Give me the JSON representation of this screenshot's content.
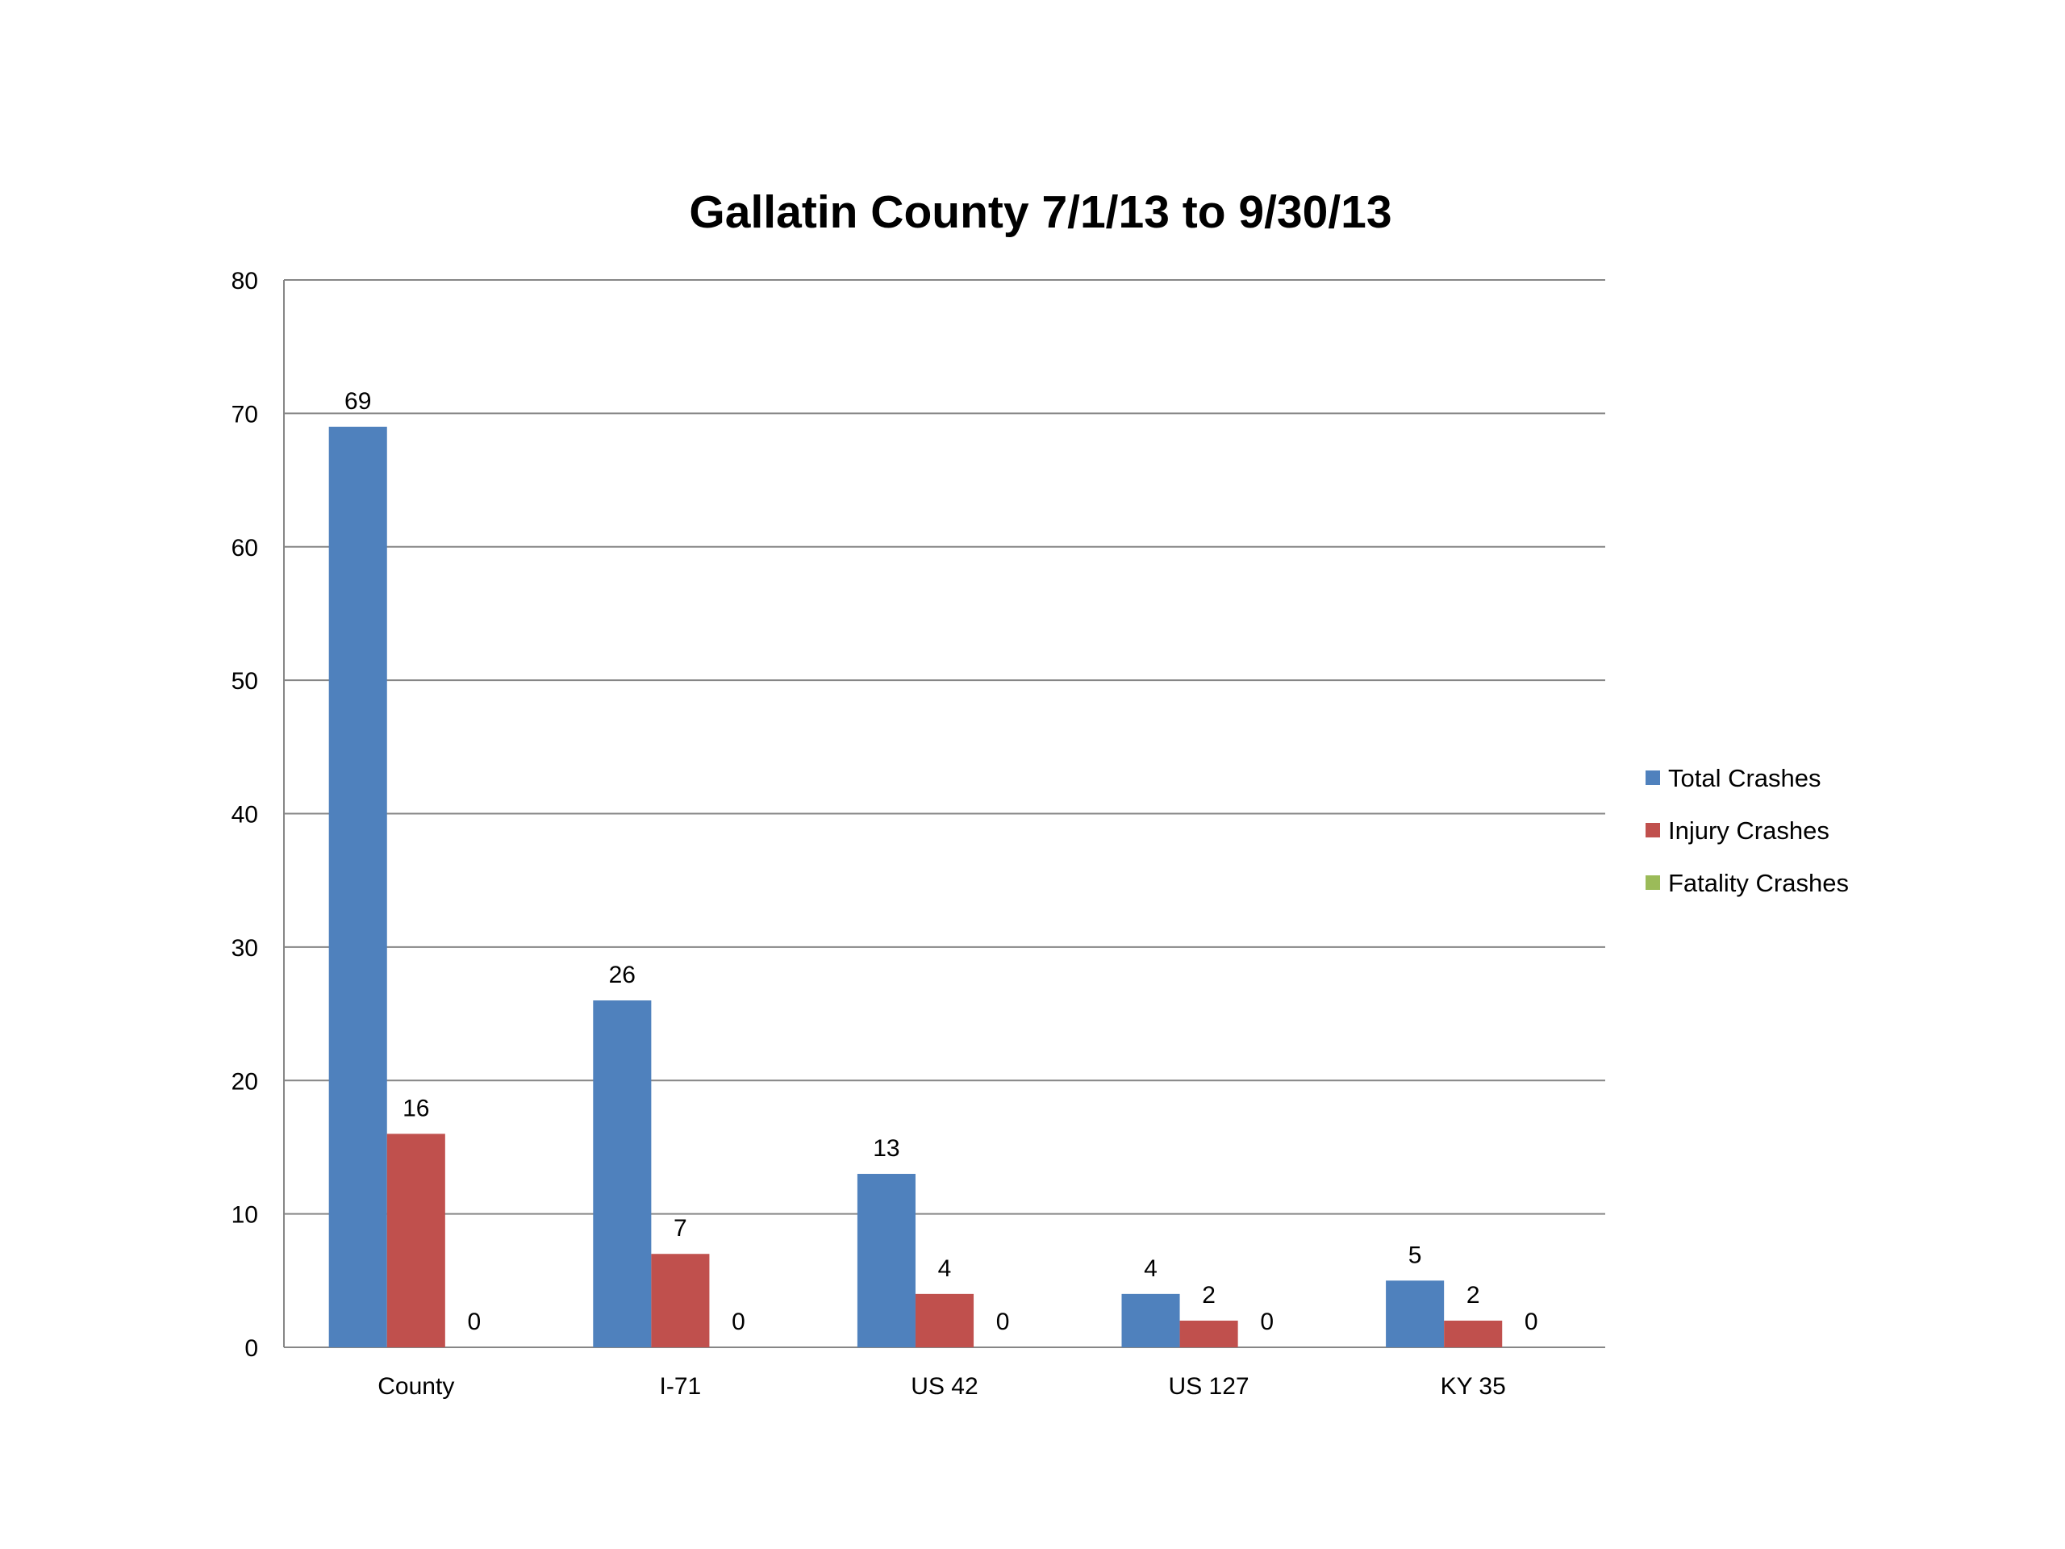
{
  "chart_data": {
    "type": "bar",
    "title": "Gallatin County 7/1/13 to 9/30/13",
    "xlabel": "",
    "ylabel": "",
    "categories": [
      "County",
      "I-71",
      "US 42",
      "US 127",
      "KY 35"
    ],
    "series": [
      {
        "name": "Total Crashes",
        "color": "#4f81bd",
        "values": [
          69,
          26,
          13,
          4,
          5
        ]
      },
      {
        "name": "Injury Crashes",
        "color": "#c0504d",
        "values": [
          16,
          7,
          4,
          2,
          2
        ]
      },
      {
        "name": "Fatality Crashes",
        "color": "#9bbb59",
        "values": [
          0,
          0,
          0,
          0,
          0
        ]
      }
    ],
    "ylim": [
      0,
      80
    ],
    "yticks": [
      0,
      10,
      20,
      30,
      40,
      50,
      60,
      70,
      80
    ],
    "grid": true,
    "legend": "right",
    "data_labels": true
  }
}
